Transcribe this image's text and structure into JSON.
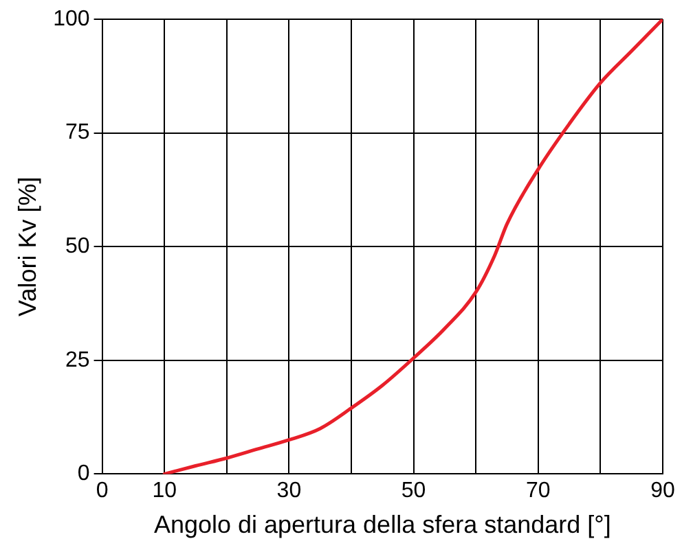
{
  "chart_data": {
    "type": "line",
    "xlabel": "Angolo di apertura della sfera standard [°]",
    "ylabel": "Valori Kv [%]",
    "x": [
      10,
      15,
      20,
      25,
      30,
      35,
      40,
      45,
      50,
      55,
      60,
      63,
      65,
      70,
      75,
      80,
      85,
      90
    ],
    "series": [
      {
        "color": "#e8202a",
        "values": [
          0,
          1.8,
          3.5,
          5.5,
          7.5,
          10,
          14.5,
          19.5,
          25.5,
          32,
          40,
          48,
          55,
          67,
          77,
          86,
          93,
          100
        ]
      }
    ],
    "xlim": [
      0,
      90
    ],
    "ylim": [
      0,
      100
    ],
    "xticks": [
      0,
      10,
      {
        "value": 20,
        "label": null
      },
      30,
      {
        "value": 40,
        "label": null
      },
      50,
      {
        "value": 60,
        "label": null
      },
      70,
      {
        "value": 80,
        "label": null
      },
      90
    ],
    "yticks": [
      0,
      25,
      50,
      75,
      100
    ],
    "grid": true,
    "legend": false,
    "marker": "none",
    "line_style": "solid"
  }
}
